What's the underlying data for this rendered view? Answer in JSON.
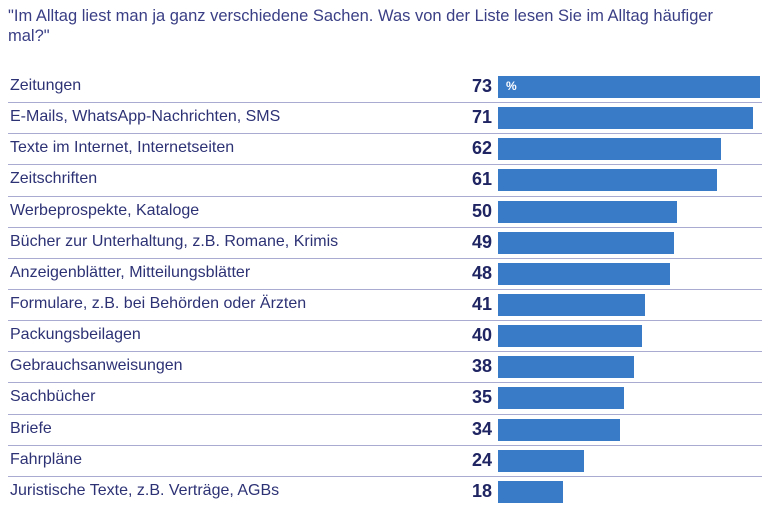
{
  "chart_data": {
    "type": "bar",
    "orientation": "horizontal",
    "title": "\"Im Alltag liest man ja ganz verschiedene Sachen. Was von der Liste lesen Sie im Alltag häufiger mal?\"",
    "unit": "%",
    "categories": [
      "Zeitungen",
      "E-Mails, WhatsApp-Nachrichten, SMS",
      "Texte im Internet, Internetseiten",
      "Zeitschriften",
      "Werbeprospekte, Kataloge",
      "Bücher zur Unterhaltung, z.B. Romane, Krimis",
      "Anzeigenblätter, Mitteilungsblätter",
      "Formulare, z.B. bei Behörden oder Ärzten",
      "Packungsbeilagen",
      "Gebrauchsanweisungen",
      "Sachbücher",
      "Briefe",
      "Fahrpläne",
      "Juristische Texte, z.B. Verträge, AGBs"
    ],
    "values": [
      73,
      71,
      62,
      61,
      50,
      49,
      48,
      41,
      40,
      38,
      35,
      34,
      24,
      18
    ],
    "xlim": [
      0,
      73
    ],
    "bar_color": "#3a7bc8"
  }
}
